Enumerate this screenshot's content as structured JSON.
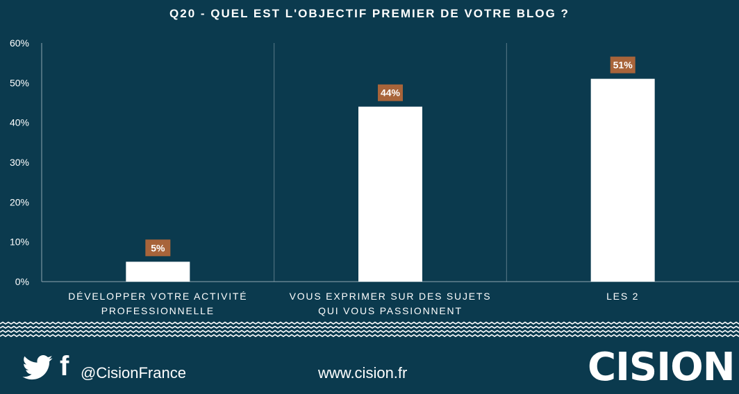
{
  "chart_data": {
    "type": "bar",
    "title": "Q20 - QUEL EST L'OBJECTIF PREMIER DE VOTRE BLOG ?",
    "categories": [
      [
        "DÉVELOPPER VOTRE ACTIVITÉ",
        "PROFESSIONNELLE"
      ],
      [
        "VOUS EXPRIMER SUR DES SUJETS",
        "QUI VOUS PASSIONNENT"
      ],
      [
        "LES 2"
      ]
    ],
    "values": [
      5,
      44,
      51
    ],
    "data_labels": [
      "5%",
      "44%",
      "51%"
    ],
    "y_ticks": [
      "0%",
      "10%",
      "20%",
      "30%",
      "40%",
      "50%",
      "60%"
    ],
    "ylim": [
      0,
      60
    ],
    "xlabel": "",
    "ylabel": "",
    "grid": false,
    "colors": {
      "background": "#0b3a4e",
      "bar": "#ffffff",
      "label_box": "#a8643a",
      "axis": "#8fa5b0",
      "text": "#ffffff"
    }
  },
  "footer": {
    "handle": "@CisionFrance",
    "site": "www.cision.fr",
    "logo_text": "CISION",
    "logo_mark": "®",
    "icons": [
      "twitter-icon",
      "facebook-icon"
    ]
  }
}
